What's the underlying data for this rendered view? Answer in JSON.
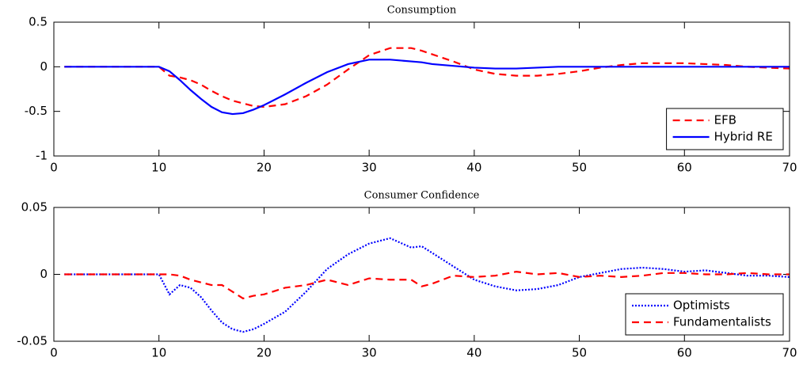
{
  "chart_data": [
    {
      "type": "line",
      "title": "Consumption",
      "x": [
        1,
        5,
        10,
        11,
        12,
        13,
        14,
        15,
        16,
        17,
        18,
        19,
        20,
        22,
        24,
        26,
        28,
        30,
        32,
        34,
        35,
        36,
        38,
        40,
        42,
        44,
        46,
        48,
        50,
        52,
        54,
        56,
        58,
        60,
        62,
        64,
        66,
        68,
        70
      ],
      "series": [
        {
          "name": "EFB",
          "color": "#ff0000",
          "dash": "dashed",
          "values": [
            0,
            0,
            0,
            -0.1,
            -0.12,
            -0.15,
            -0.2,
            -0.27,
            -0.33,
            -0.38,
            -0.41,
            -0.44,
            -0.45,
            -0.42,
            -0.33,
            -0.2,
            -0.03,
            0.13,
            0.21,
            0.21,
            0.18,
            0.14,
            0.06,
            -0.03,
            -0.08,
            -0.1,
            -0.1,
            -0.08,
            -0.05,
            -0.01,
            0.02,
            0.04,
            0.04,
            0.04,
            0.03,
            0.02,
            0,
            -0.01,
            -0.02
          ]
        },
        {
          "name": "Hybrid RE",
          "color": "#0000ff",
          "dash": "solid",
          "values": [
            0,
            0,
            0,
            -0.05,
            -0.15,
            -0.26,
            -0.36,
            -0.45,
            -0.51,
            -0.53,
            -0.52,
            -0.48,
            -0.43,
            -0.31,
            -0.18,
            -0.06,
            0.03,
            0.08,
            0.08,
            0.06,
            0.05,
            0.03,
            0.01,
            -0.01,
            -0.02,
            -0.02,
            -0.01,
            0,
            0,
            0,
            0,
            0,
            0,
            0,
            0,
            0,
            0,
            0,
            0
          ]
        }
      ],
      "xlim": [
        0,
        70
      ],
      "xticks": [
        0,
        10,
        20,
        30,
        40,
        50,
        60,
        70
      ],
      "ylim": [
        -1,
        0.5
      ],
      "yticks": [
        -1,
        -0.5,
        0,
        0.5
      ],
      "legend": "lower right"
    },
    {
      "type": "line",
      "title": "Consumer Confidence",
      "x": [
        1,
        5,
        10,
        11,
        12,
        13,
        14,
        15,
        16,
        17,
        18,
        19,
        20,
        22,
        24,
        26,
        28,
        30,
        32,
        34,
        35,
        36,
        38,
        40,
        42,
        44,
        46,
        48,
        50,
        52,
        54,
        56,
        58,
        60,
        62,
        64,
        66,
        68,
        70
      ],
      "series": [
        {
          "name": "Optimists",
          "color": "#0000ff",
          "dash": "dotted",
          "values": [
            0,
            0,
            0,
            -0.015,
            -0.008,
            -0.01,
            -0.017,
            -0.027,
            -0.036,
            -0.041,
            -0.043,
            -0.041,
            -0.037,
            -0.028,
            -0.013,
            0.004,
            0.015,
            0.023,
            0.027,
            0.02,
            0.021,
            0.016,
            0.006,
            -0.004,
            -0.009,
            -0.012,
            -0.011,
            -0.008,
            -0.002,
            0.001,
            0.004,
            0.005,
            0.004,
            0.002,
            0.003,
            0.001,
            -0.001,
            -0.001,
            -0.002
          ]
        },
        {
          "name": "Fundamentalists",
          "color": "#ff0000",
          "dash": "dashed",
          "values": [
            0,
            0,
            0,
            0,
            -0.001,
            -0.004,
            -0.006,
            -0.008,
            -0.008,
            -0.013,
            -0.018,
            -0.016,
            -0.015,
            -0.01,
            -0.008,
            -0.004,
            -0.008,
            -0.003,
            -0.004,
            -0.004,
            -0.009,
            -0.007,
            -0.001,
            -0.002,
            -0.001,
            0.002,
            0,
            0.001,
            -0.002,
            -0.001,
            -0.002,
            -0.001,
            0.001,
            0.001,
            0,
            0,
            0.001,
            0,
            0
          ]
        }
      ],
      "xlim": [
        0,
        70
      ],
      "xticks": [
        0,
        10,
        20,
        30,
        40,
        50,
        60,
        70
      ],
      "ylim": [
        -0.05,
        0.05
      ],
      "yticks": [
        -0.05,
        0,
        0.05
      ],
      "legend": "lower right"
    }
  ]
}
